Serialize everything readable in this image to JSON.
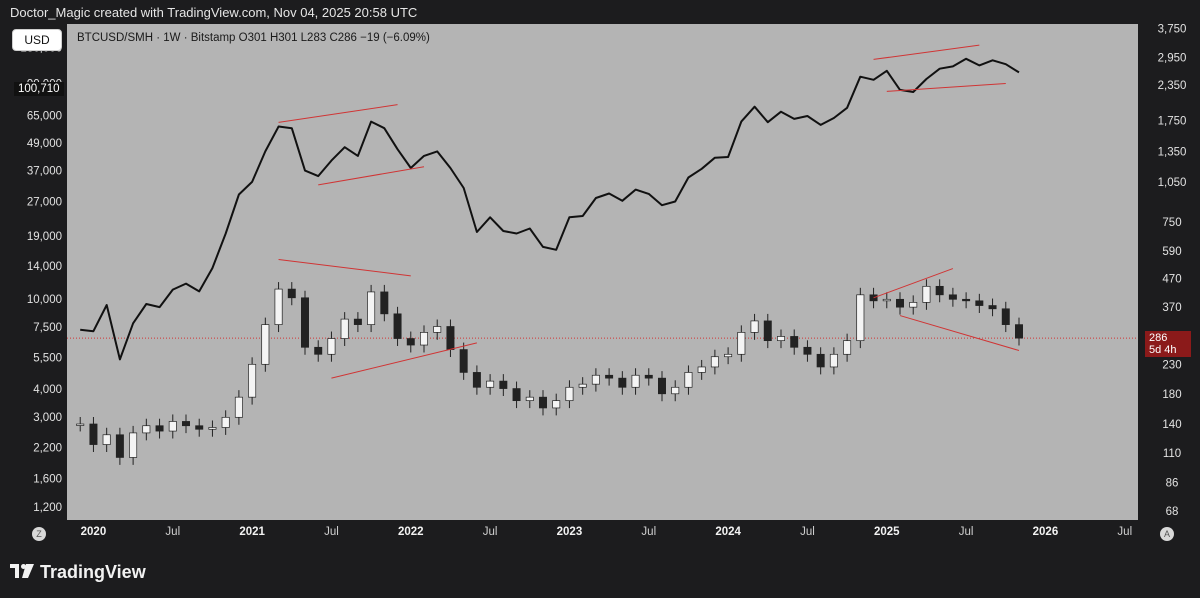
{
  "caption": "Doctor_Magic created with TradingView.com, Nov 04, 2025 20:58 UTC",
  "toolbar": {
    "currency": "USD",
    "zoom_icon": "Z",
    "auto_icon": "A"
  },
  "legend": "BTCUSD/SMH · 1W · Bitstamp  O301  H301  L283  C286  −19 (−6.09%)",
  "btc_badge": "100,710",
  "ratio_badge": {
    "value": "286",
    "countdown": "5d 4h"
  },
  "footer": {
    "brand": "TradingView",
    "logo_icon": "tradingview-logo-icon"
  },
  "colors": {
    "plot_bg": "#b4b4b4",
    "line": "#111111",
    "trend": "#d03434",
    "badge_red": "#8b1a1a"
  },
  "chart_data": {
    "type": "line",
    "xlim": [
      "2019-11",
      "2026-08"
    ],
    "x_ticks": [
      {
        "label": "2020",
        "t": "2020-01",
        "bold": true
      },
      {
        "label": "Jul",
        "t": "2020-07"
      },
      {
        "label": "2021",
        "t": "2021-01",
        "bold": true
      },
      {
        "label": "Jul",
        "t": "2021-07"
      },
      {
        "label": "2022",
        "t": "2022-01",
        "bold": true
      },
      {
        "label": "Jul",
        "t": "2022-07"
      },
      {
        "label": "2023",
        "t": "2023-01",
        "bold": true
      },
      {
        "label": "Jul",
        "t": "2023-07"
      },
      {
        "label": "2024",
        "t": "2024-01",
        "bold": true
      },
      {
        "label": "Jul",
        "t": "2024-07"
      },
      {
        "label": "2025",
        "t": "2025-01",
        "bold": true
      },
      {
        "label": "Jul",
        "t": "2025-07"
      },
      {
        "label": "2026",
        "t": "2026-01",
        "bold": true
      },
      {
        "label": "Jul",
        "t": "2026-07"
      }
    ],
    "left_axis": {
      "scale": "log",
      "range": [
        1050,
        165000
      ],
      "ticks": [
        130000,
        90000,
        65000,
        49000,
        37000,
        27000,
        19000,
        14000,
        10000,
        7500,
        5500,
        4000,
        3000,
        2200,
        1600,
        1200
      ],
      "tick_labels": [
        "130,000",
        "90,000",
        "65,000",
        "49,000",
        "37,000",
        "27,000",
        "19,000",
        "14,000",
        "10,000",
        "7,500",
        "5,500",
        "4,000",
        "3,000",
        "2,200",
        "1,600",
        "1,200"
      ]
    },
    "right_axis": {
      "scale": "log",
      "range": [
        63,
        3900
      ],
      "ticks": [
        3750,
        2950,
        2350,
        1750,
        1350,
        1050,
        750,
        590,
        470,
        370,
        230,
        180,
        140,
        110,
        86,
        68
      ],
      "tick_labels": [
        "3,750",
        "2,950",
        "2,350",
        "1,750",
        "1,350",
        "1,050",
        "750",
        "590",
        "470",
        "370",
        "230",
        "180",
        "140",
        "110",
        "86",
        "68"
      ]
    },
    "series": [
      {
        "axis": "left",
        "style": "line",
        "points": [
          [
            "2019-12",
            7300
          ],
          [
            "2020-01",
            7200
          ],
          [
            "2020-02",
            9400
          ],
          [
            "2020-03",
            5400
          ],
          [
            "2020-04",
            7800
          ],
          [
            "2020-05",
            9500
          ],
          [
            "2020-06",
            9200
          ],
          [
            "2020-07",
            11000
          ],
          [
            "2020-08",
            11700
          ],
          [
            "2020-09",
            10800
          ],
          [
            "2020-10",
            13700
          ],
          [
            "2020-11",
            19500
          ],
          [
            "2020-12",
            29000
          ],
          [
            "2021-01",
            33000
          ],
          [
            "2021-02",
            45000
          ],
          [
            "2021-03",
            58000
          ],
          [
            "2021-04",
            57000
          ],
          [
            "2021-05",
            37000
          ],
          [
            "2021-06",
            35000
          ],
          [
            "2021-07",
            41000
          ],
          [
            "2021-08",
            47000
          ],
          [
            "2021-09",
            43000
          ],
          [
            "2021-10",
            61000
          ],
          [
            "2021-11",
            57000
          ],
          [
            "2021-12",
            46000
          ],
          [
            "2022-01",
            38000
          ],
          [
            "2022-02",
            43000
          ],
          [
            "2022-03",
            45000
          ],
          [
            "2022-04",
            38000
          ],
          [
            "2022-05",
            31000
          ],
          [
            "2022-06",
            19800
          ],
          [
            "2022-07",
            23000
          ],
          [
            "2022-08",
            20000
          ],
          [
            "2022-09",
            19500
          ],
          [
            "2022-10",
            20500
          ],
          [
            "2022-11",
            17000
          ],
          [
            "2022-12",
            16500
          ],
          [
            "2023-01",
            23000
          ],
          [
            "2023-02",
            23300
          ],
          [
            "2023-03",
            28000
          ],
          [
            "2023-04",
            29300
          ],
          [
            "2023-05",
            27200
          ],
          [
            "2023-06",
            30500
          ],
          [
            "2023-07",
            29200
          ],
          [
            "2023-08",
            26000
          ],
          [
            "2023-09",
            27000
          ],
          [
            "2023-10",
            34500
          ],
          [
            "2023-11",
            37700
          ],
          [
            "2023-12",
            42200
          ],
          [
            "2024-01",
            42500
          ],
          [
            "2024-02",
            61000
          ],
          [
            "2024-03",
            71000
          ],
          [
            "2024-04",
            60600
          ],
          [
            "2024-05",
            67500
          ],
          [
            "2024-06",
            62700
          ],
          [
            "2024-07",
            64600
          ],
          [
            "2024-08",
            59000
          ],
          [
            "2024-09",
            63300
          ],
          [
            "2024-10",
            70200
          ],
          [
            "2024-11",
            96400
          ],
          [
            "2024-12",
            93400
          ],
          [
            "2025-01",
            102400
          ],
          [
            "2025-02",
            84300
          ],
          [
            "2025-03",
            82500
          ],
          [
            "2025-04",
            94200
          ],
          [
            "2025-05",
            104600
          ],
          [
            "2025-06",
            107100
          ],
          [
            "2025-07",
            115700
          ],
          [
            "2025-08",
            108200
          ],
          [
            "2025-09",
            114000
          ],
          [
            "2025-10",
            109500
          ],
          [
            "2025-11",
            100710
          ]
        ]
      },
      {
        "axis": "right",
        "style": "candles",
        "points": [
          [
            "2019-12",
            140
          ],
          [
            "2020-01",
            118
          ],
          [
            "2020-02",
            128
          ],
          [
            "2020-03",
            106
          ],
          [
            "2020-04",
            130
          ],
          [
            "2020-05",
            138
          ],
          [
            "2020-06",
            132
          ],
          [
            "2020-07",
            143
          ],
          [
            "2020-08",
            138
          ],
          [
            "2020-09",
            134
          ],
          [
            "2020-10",
            136
          ],
          [
            "2020-11",
            148
          ],
          [
            "2020-12",
            175
          ],
          [
            "2021-01",
            230
          ],
          [
            "2021-02",
            320
          ],
          [
            "2021-03",
            430
          ],
          [
            "2021-04",
            400
          ],
          [
            "2021-05",
            265
          ],
          [
            "2021-06",
            250
          ],
          [
            "2021-07",
            285
          ],
          [
            "2021-08",
            335
          ],
          [
            "2021-09",
            320
          ],
          [
            "2021-10",
            420
          ],
          [
            "2021-11",
            350
          ],
          [
            "2021-12",
            285
          ],
          [
            "2022-01",
            270
          ],
          [
            "2022-02",
            300
          ],
          [
            "2022-03",
            315
          ],
          [
            "2022-04",
            260
          ],
          [
            "2022-05",
            215
          ],
          [
            "2022-06",
            190
          ],
          [
            "2022-07",
            200
          ],
          [
            "2022-08",
            188
          ],
          [
            "2022-09",
            170
          ],
          [
            "2022-10",
            175
          ],
          [
            "2022-11",
            160
          ],
          [
            "2022-12",
            170
          ],
          [
            "2023-01",
            190
          ],
          [
            "2023-02",
            195
          ],
          [
            "2023-03",
            210
          ],
          [
            "2023-04",
            205
          ],
          [
            "2023-05",
            190
          ],
          [
            "2023-06",
            210
          ],
          [
            "2023-07",
            205
          ],
          [
            "2023-08",
            180
          ],
          [
            "2023-09",
            190
          ],
          [
            "2023-10",
            215
          ],
          [
            "2023-11",
            225
          ],
          [
            "2023-12",
            245
          ],
          [
            "2024-01",
            250
          ],
          [
            "2024-02",
            300
          ],
          [
            "2024-03",
            330
          ],
          [
            "2024-04",
            280
          ],
          [
            "2024-05",
            290
          ],
          [
            "2024-06",
            265
          ],
          [
            "2024-07",
            250
          ],
          [
            "2024-08",
            225
          ],
          [
            "2024-09",
            250
          ],
          [
            "2024-10",
            280
          ],
          [
            "2024-11",
            410
          ],
          [
            "2024-12",
            390
          ],
          [
            "2025-01",
            395
          ],
          [
            "2025-02",
            370
          ],
          [
            "2025-03",
            385
          ],
          [
            "2025-04",
            440
          ],
          [
            "2025-05",
            410
          ],
          [
            "2025-06",
            395
          ],
          [
            "2025-07",
            390
          ],
          [
            "2025-08",
            375
          ],
          [
            "2025-09",
            365
          ],
          [
            "2025-10",
            320
          ],
          [
            "2025-11",
            286
          ]
        ]
      }
    ],
    "trendlines": [
      {
        "axis": "left",
        "from": [
          "2021-03",
          60500
        ],
        "to": [
          "2021-12",
          72500
        ]
      },
      {
        "axis": "left",
        "from": [
          "2021-06",
          32000
        ],
        "to": [
          "2022-02",
          38500
        ]
      },
      {
        "axis": "left",
        "from": [
          "2024-12",
          115000
        ],
        "to": [
          "2025-08",
          133000
        ]
      },
      {
        "axis": "left",
        "from": [
          "2025-01",
          83000
        ],
        "to": [
          "2025-10",
          90000
        ]
      },
      {
        "axis": "right",
        "from": [
          "2021-03",
          550
        ],
        "to": [
          "2022-01",
          480
        ]
      },
      {
        "axis": "right",
        "from": [
          "2021-07",
          205
        ],
        "to": [
          "2022-06",
          275
        ]
      },
      {
        "axis": "right",
        "from": [
          "2024-12",
          400
        ],
        "to": [
          "2025-06",
          510
        ]
      },
      {
        "axis": "right",
        "from": [
          "2025-02",
          345
        ],
        "to": [
          "2025-11",
          258
        ]
      }
    ],
    "price_line": {
      "axis": "right",
      "value": 286
    }
  }
}
